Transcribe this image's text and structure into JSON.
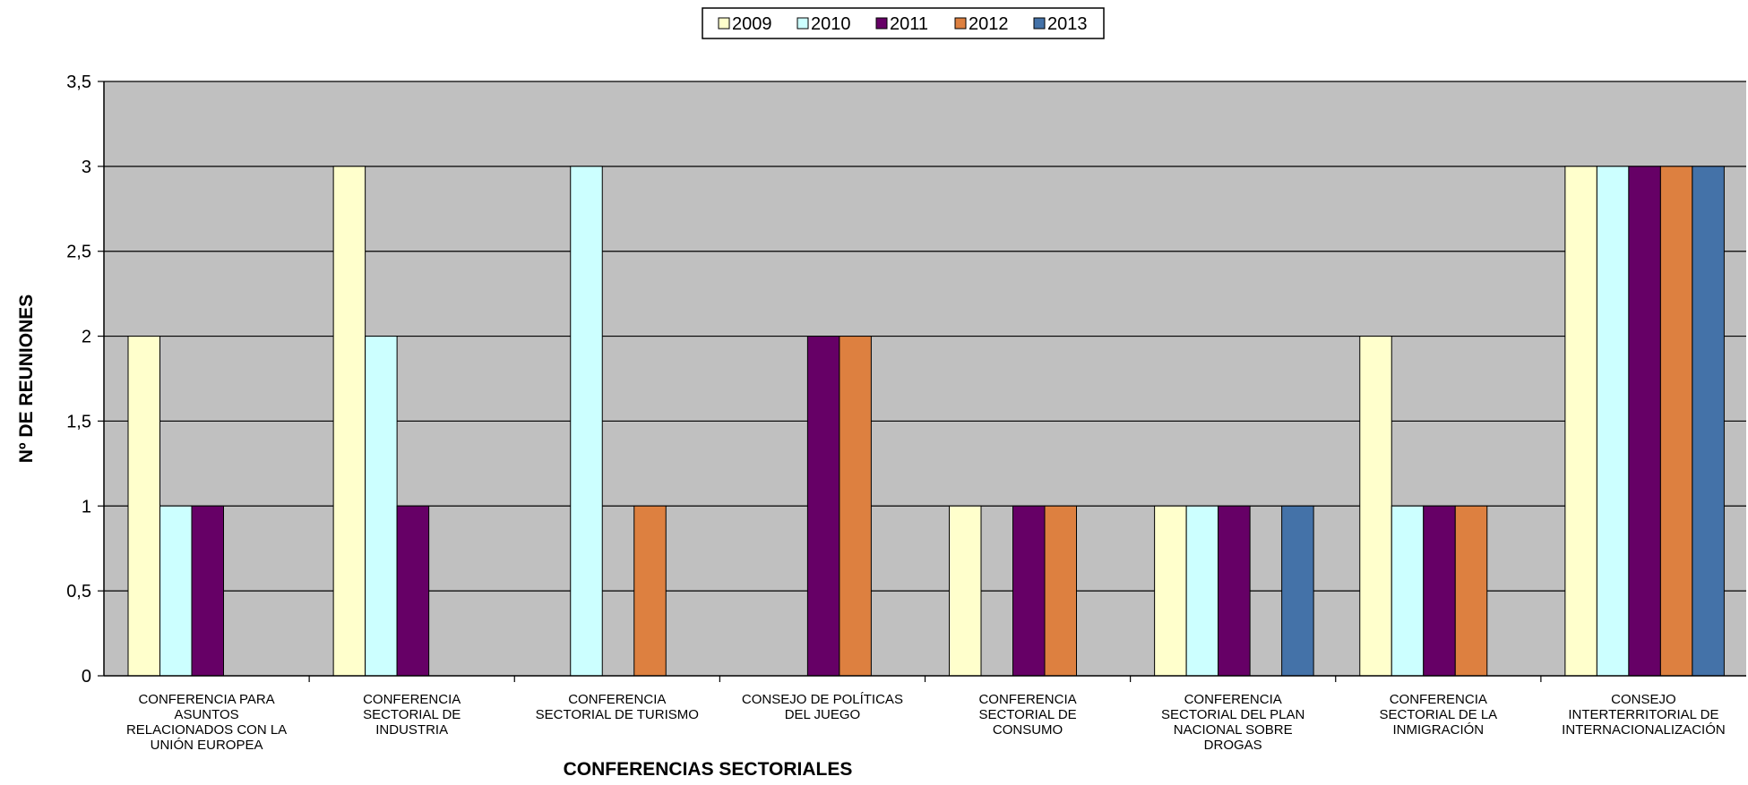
{
  "chart_data": {
    "type": "bar",
    "title": "",
    "xlabel": "CONFERENCIAS  SECTORIALES",
    "ylabel": "Nº DE REUNIONES",
    "ylim": [
      0,
      3.5
    ],
    "y_ticks": [
      "0",
      "0,5",
      "1",
      "1,5",
      "2",
      "2,5",
      "3",
      "3,5"
    ],
    "grid": true,
    "legend_position": "top-center",
    "plot_background": "#c0c0c0",
    "categories": [
      [
        "CONFERENCIA PARA",
        "ASUNTOS",
        "RELACIONADOS CON LA",
        "UNIÓN EUROPEA"
      ],
      [
        "CONFERENCIA",
        "SECTORIAL DE",
        "INDUSTRIA"
      ],
      [
        "CONFERENCIA",
        "SECTORIAL DE TURISMO"
      ],
      [
        "CONSEJO DE POLÍTICAS",
        "DEL JUEGO"
      ],
      [
        "CONFERENCIA",
        "SECTORIAL DE",
        "CONSUMO"
      ],
      [
        "CONFERENCIA",
        "SECTORIAL DEL PLAN",
        "NACIONAL SOBRE",
        "DROGAS"
      ],
      [
        "CONFERENCIA",
        "SECTORIAL DE LA",
        "INMIGRACIÓN"
      ],
      [
        "CONSEJO",
        "INTERTERRITORIAL DE",
        "INTERNACIONALIZACIÓN"
      ]
    ],
    "series": [
      {
        "name": "2009",
        "color": "#ffffcc",
        "values": [
          2,
          3,
          0,
          0,
          1,
          1,
          2,
          3
        ]
      },
      {
        "name": "2010",
        "color": "#ccffff",
        "values": [
          1,
          2,
          3,
          0,
          0,
          1,
          1,
          3
        ]
      },
      {
        "name": "2011",
        "color": "#660066",
        "values": [
          1,
          1,
          0,
          2,
          1,
          1,
          1,
          3
        ]
      },
      {
        "name": "2012",
        "color": "#dd8040",
        "values": [
          0,
          0,
          1,
          2,
          1,
          0,
          1,
          3
        ]
      },
      {
        "name": "2013",
        "color": "#4472a8",
        "values": [
          0,
          0,
          0,
          0,
          0,
          1,
          0,
          3
        ]
      }
    ]
  }
}
